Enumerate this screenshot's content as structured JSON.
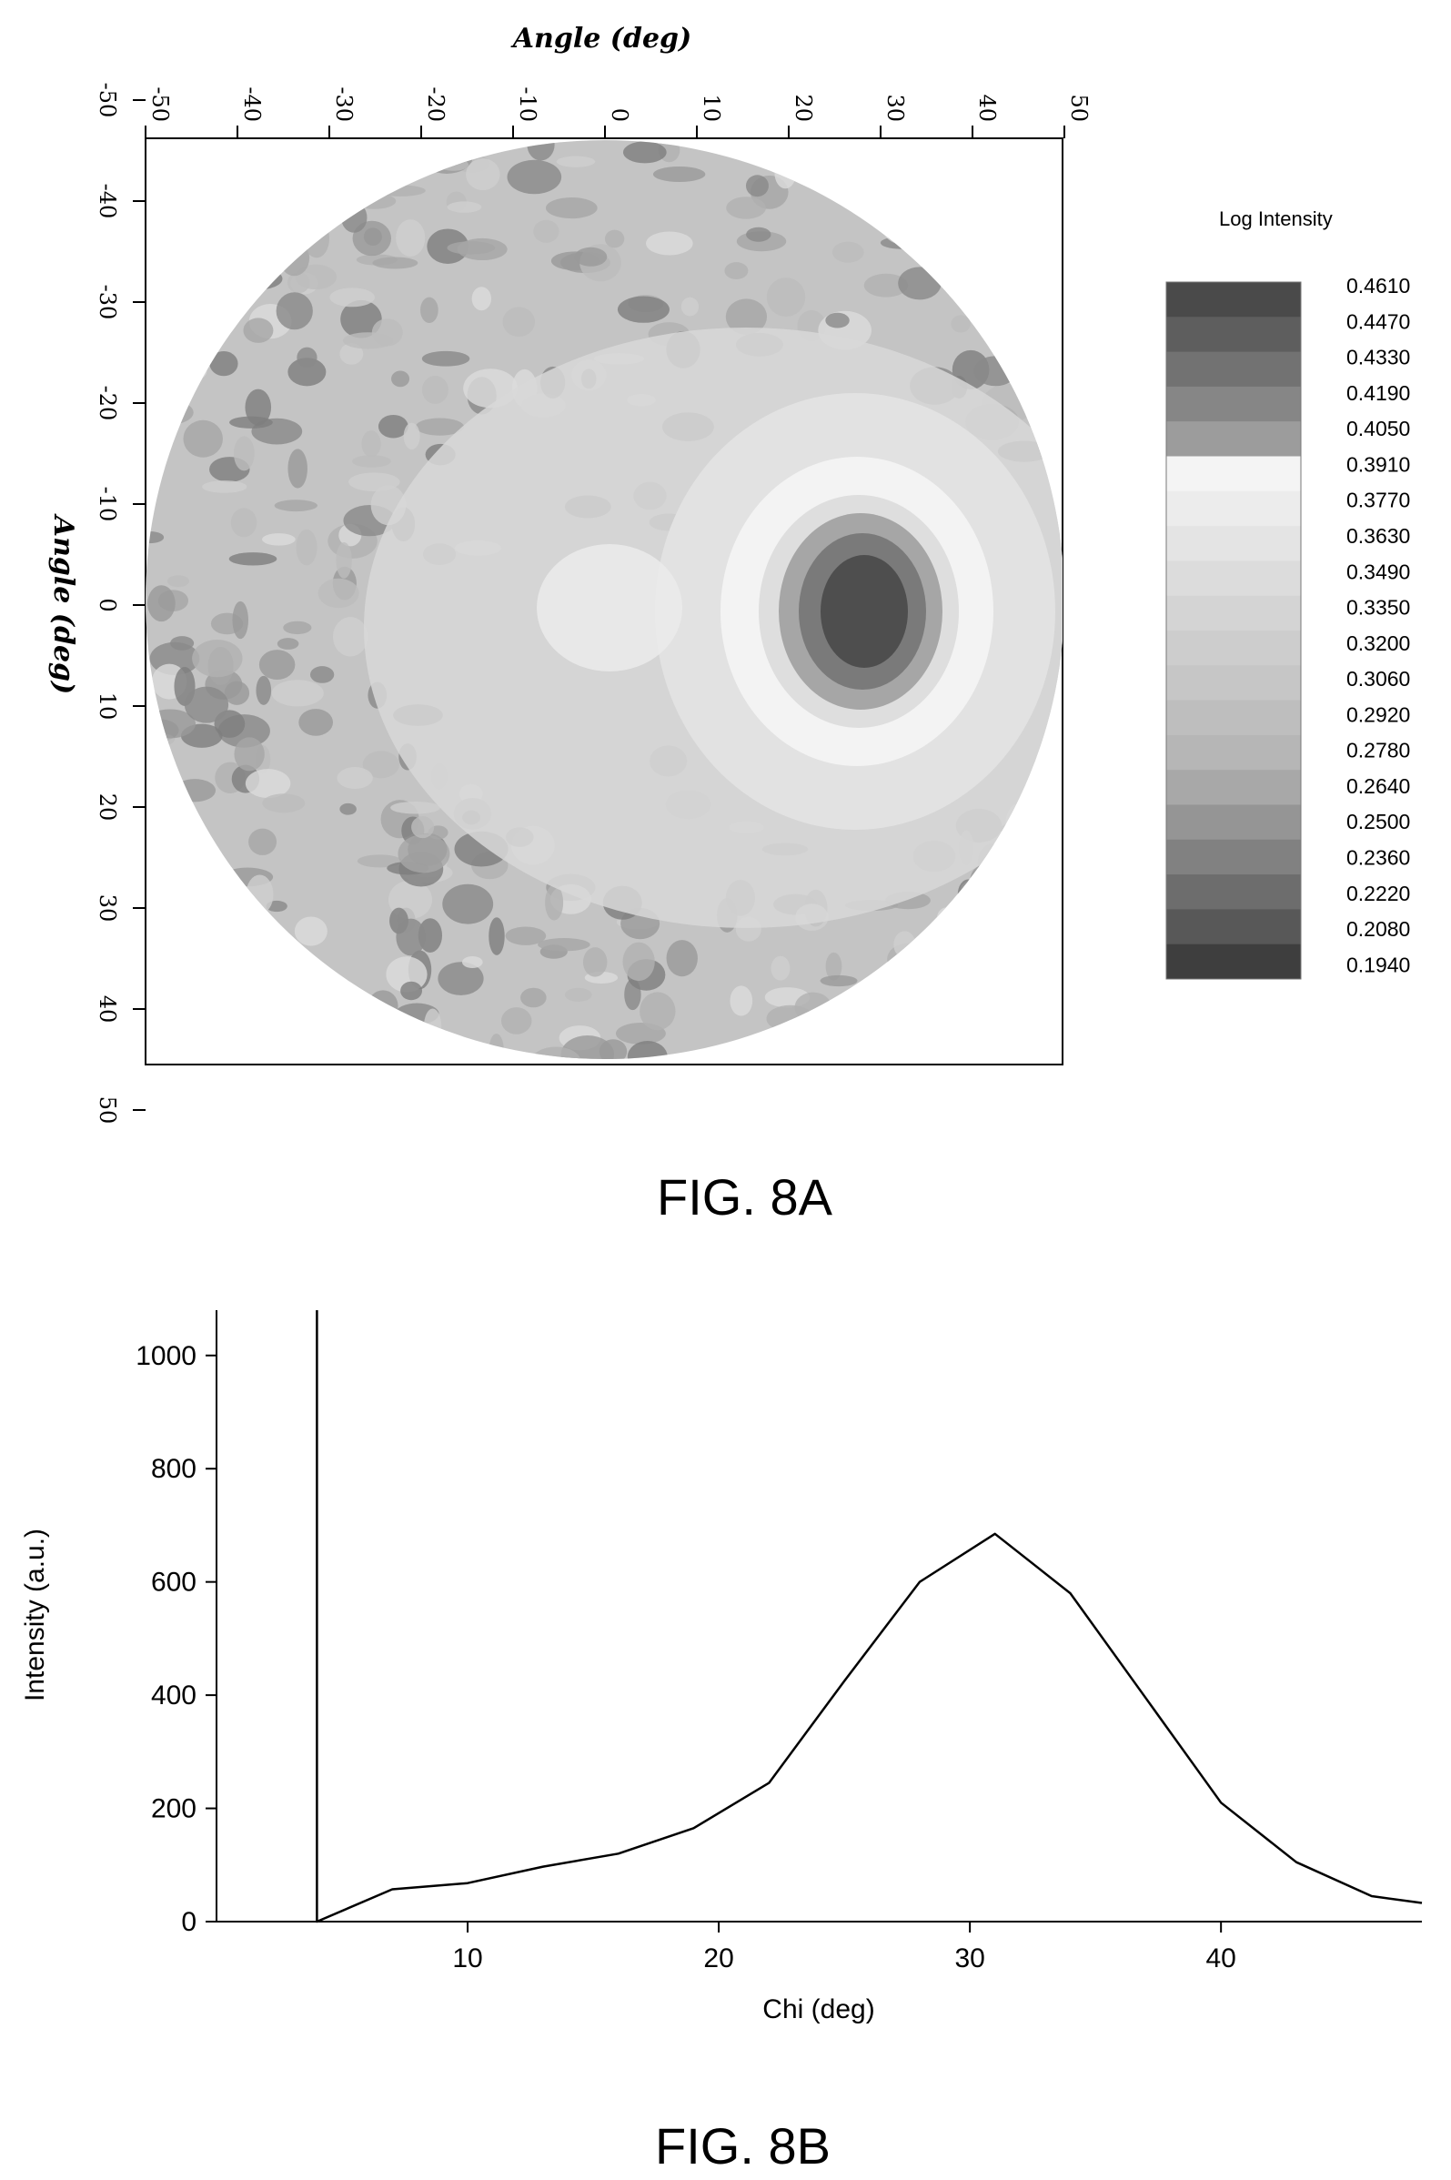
{
  "figure_a": {
    "caption": "FIG. 8A",
    "top_axis_title": "Angle (deg)",
    "left_axis_title": "Angle (deg)",
    "colorbar_title": "Log Intensity"
  },
  "figure_b": {
    "caption": "FIG. 8B"
  },
  "chart_data": [
    {
      "type": "heatmap",
      "title": "",
      "xlabel": "Angle (deg)",
      "ylabel": "Angle (deg)",
      "x_ticks": [
        -50,
        -40,
        -30,
        -20,
        -10,
        0,
        10,
        20,
        30,
        40,
        50
      ],
      "y_ticks": [
        -50,
        -40,
        -30,
        -20,
        -10,
        0,
        10,
        20,
        30,
        40,
        50
      ],
      "xlim": [
        -55,
        55
      ],
      "ylim": [
        -55,
        55
      ],
      "colorbar": {
        "label": "Log Intensity",
        "levels": [
          "0.4610",
          "0.4470",
          "0.4330",
          "0.4190",
          "0.4050",
          "0.3910",
          "0.3770",
          "0.3630",
          "0.3490",
          "0.3350",
          "0.3200",
          "0.3060",
          "0.2920",
          "0.2780",
          "0.2640",
          "0.2500",
          "0.2360",
          "0.2220",
          "0.2080",
          "0.1940"
        ],
        "colors": [
          "#4a4a4a",
          "#5e5e5e",
          "#727272",
          "#868686",
          "#9c9c9c",
          "#f4f4f4",
          "#ececec",
          "#e4e4e4",
          "#dcdcdc",
          "#d4d4d4",
          "#cdcdcd",
          "#c6c6c6",
          "#bebebe",
          "#b6b6b6",
          "#a8a8a8",
          "#959595",
          "#818181",
          "#6d6d6d",
          "#585858",
          "#3e3e3e"
        ]
      },
      "features": {
        "peak_center_deg": [
          33,
          0
        ],
        "peak_value": 0.461
      }
    },
    {
      "type": "line",
      "title": "",
      "xlabel": "Chi (deg)",
      "ylabel": "Intensity (a.u.)",
      "xlim": [
        0,
        48
      ],
      "ylim": [
        0,
        1080
      ],
      "x_ticks": [
        10,
        20,
        30,
        40
      ],
      "y_ticks": [
        0,
        200,
        400,
        600,
        800,
        1000
      ],
      "grid": false,
      "series": [
        {
          "x": [
            4,
            4,
            7,
            10,
            13,
            16,
            19,
            22,
            25,
            28,
            31,
            34,
            37,
            40,
            43,
            46,
            48
          ],
          "y": [
            1080,
            0,
            57,
            68,
            97,
            120,
            165,
            245,
            425,
            600,
            685,
            580,
            395,
            210,
            105,
            45,
            33
          ]
        }
      ]
    }
  ]
}
